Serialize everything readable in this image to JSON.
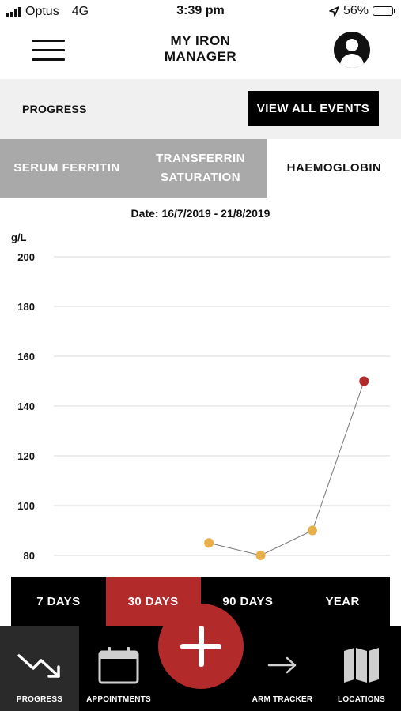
{
  "status_bar": {
    "carrier": "Optus",
    "network": "4G",
    "time": "3:39 pm",
    "battery": "56%",
    "battery_level": 0.56,
    "icons": [
      "signal-icon",
      "location-arrow-icon",
      "battery-icon"
    ]
  },
  "header": {
    "title_line1": "MY IRON",
    "title_line2": "MANAGER",
    "menu_icon": "hamburger-icon",
    "profile_icon": "user-profile-icon"
  },
  "progress": {
    "label": "PROGRESS",
    "view_all_label": "VIEW ALL EVENTS"
  },
  "tabs": [
    {
      "line1": "SERUM FERRITIN",
      "line2": "",
      "active": false
    },
    {
      "line1": "TRANSFERRIN",
      "line2": "SATURATION",
      "active": false
    },
    {
      "line1": "HAEMOGLOBIN",
      "line2": "",
      "active": true
    }
  ],
  "date_range": "Date: 16/7/2019 - 21/8/2019",
  "chart_data": {
    "type": "line",
    "ylabel": "g/L",
    "ylim": [
      80,
      200
    ],
    "yticks": [
      "200",
      "180",
      "160",
      "140",
      "120",
      "100",
      "80"
    ],
    "yticks_values": [
      200,
      180,
      160,
      140,
      120,
      100,
      80
    ],
    "grid": true,
    "x_min": 0,
    "x_max": 6.5,
    "series": [
      {
        "points": [
          {
            "x": 3,
            "y": 85,
            "color": "#e8b04a"
          },
          {
            "x": 4,
            "y": 80,
            "color": "#e8b04a"
          },
          {
            "x": 5,
            "y": 90,
            "color": "#e8b04a"
          },
          {
            "x": 6,
            "y": 150,
            "color": "#b22a2a"
          }
        ],
        "line_color": "#777777"
      }
    ]
  },
  "ranges": [
    {
      "label": "7 DAYS",
      "selected": false
    },
    {
      "label": "30 DAYS",
      "selected": true
    },
    {
      "label": "90 DAYS",
      "selected": false
    },
    {
      "label": "YEAR",
      "selected": false
    }
  ],
  "bottom_nav": {
    "progress": {
      "label": "PROGRESS",
      "icon": "trend-down-arrow-icon",
      "active": true
    },
    "appointments": {
      "label": "APPOINTMENTS",
      "icon": "calendar-icon"
    },
    "add": {
      "icon": "plus-icon"
    },
    "arm_tracker": {
      "label": "ARM TRACKER",
      "icon": "right-arrow-icon"
    },
    "locations": {
      "label": "LOCATIONS",
      "icon": "map-icon"
    }
  },
  "colors": {
    "accent": "#b22a2a",
    "point_normal": "#e8b04a",
    "tab_inactive": "#a9a9a9"
  }
}
